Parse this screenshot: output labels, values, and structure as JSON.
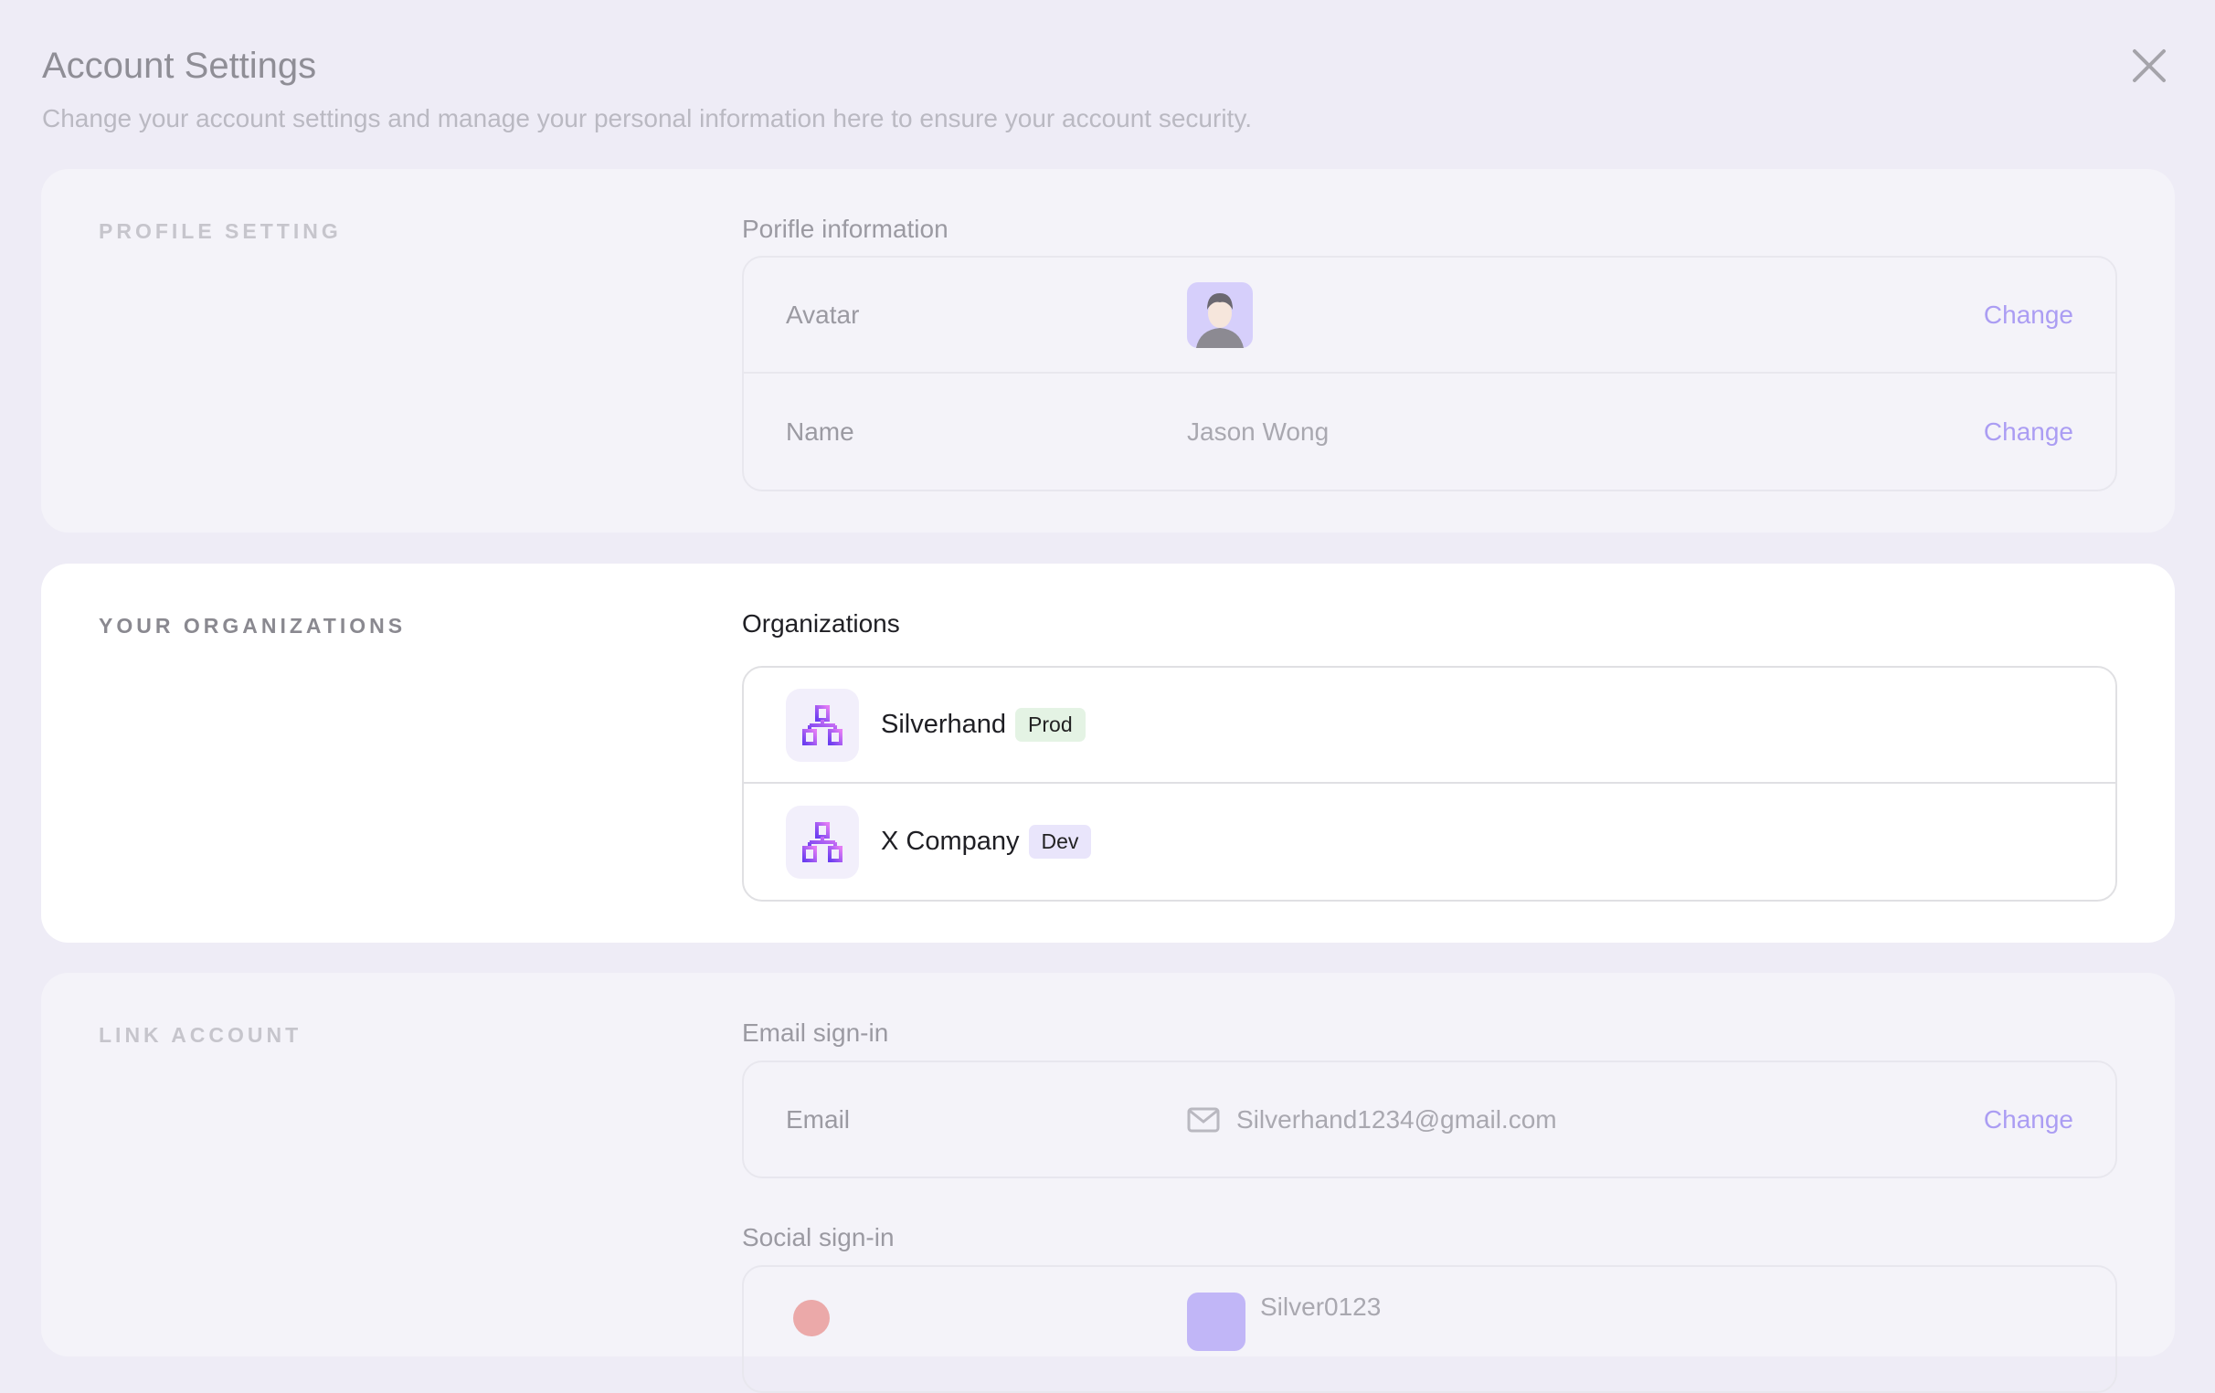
{
  "header": {
    "title": "Account Settings",
    "subtitle": "Change your account settings and manage your personal information here to ensure your account security."
  },
  "profile": {
    "section_label": "PROFILE SETTING",
    "subtitle": "Porifle information",
    "rows": [
      {
        "label": "Avatar",
        "action": "Change"
      },
      {
        "label": "Name",
        "value": "Jason Wong",
        "action": "Change"
      }
    ]
  },
  "organizations": {
    "section_label": "YOUR ORGANIZATIONS",
    "subtitle": "Organizations",
    "items": [
      {
        "name": "Silverhand",
        "tag": "Prod",
        "tag_color": "#e4f3e4"
      },
      {
        "name": "X Company",
        "tag": "Dev",
        "tag_color": "#e9e5fb"
      }
    ]
  },
  "link_account": {
    "section_label": "LINK ACCOUNT",
    "email_subtitle": "Email sign-in",
    "email": {
      "label": "Email",
      "value": "Silverhand1234@gmail.com",
      "action": "Change"
    },
    "social_subtitle": "Social sign-in",
    "social": {
      "value": "Silver0123"
    }
  },
  "colors": {
    "accent": "#ab9df3",
    "background": "#eeecf6"
  }
}
